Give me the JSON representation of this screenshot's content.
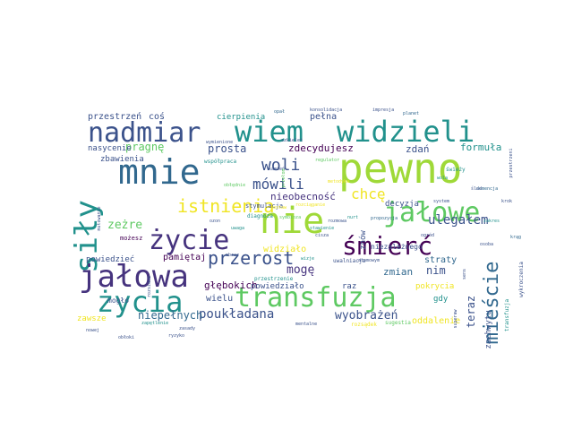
{
  "palette": {
    "yellow": "#f0e524",
    "lime": "#9fd938",
    "green": "#5ec962",
    "teal": "#21918c",
    "slate": "#31688e",
    "indigo": "#3b528b",
    "purple": "#46337e",
    "dark": "#440154"
  },
  "words": [
    {
      "text": "pewno",
      "color": "lime"
    },
    {
      "text": "mnie",
      "color": "slate"
    },
    {
      "text": "nie",
      "color": "lime"
    },
    {
      "text": "wiem",
      "color": "teal"
    },
    {
      "text": "widzieli",
      "color": "teal"
    },
    {
      "text": "nadmiar",
      "color": "indigo"
    },
    {
      "text": "jałowe",
      "color": "green"
    },
    {
      "text": "siły",
      "color": "teal"
    },
    {
      "text": "życie",
      "color": "purple"
    },
    {
      "text": "jałowa",
      "color": "purple"
    },
    {
      "text": "życia",
      "color": "teal"
    },
    {
      "text": "transfuzja",
      "color": "green"
    },
    {
      "text": "śmierć",
      "color": "dark"
    },
    {
      "text": "istnienia",
      "color": "yellow"
    },
    {
      "text": "przerost",
      "color": "indigo"
    },
    {
      "text": "mieście",
      "color": "slate"
    },
    {
      "text": "woli",
      "color": "indigo"
    },
    {
      "text": "mówili",
      "color": "indigo"
    },
    {
      "text": "ulegałem",
      "color": "indigo"
    },
    {
      "text": "pragnę",
      "color": "green"
    },
    {
      "text": "prosta",
      "color": "indigo"
    },
    {
      "text": "zdecydujesz",
      "color": "dark"
    },
    {
      "text": "zdań",
      "color": "indigo"
    },
    {
      "text": "formuła",
      "color": "teal"
    },
    {
      "text": "chcę",
      "color": "yellow"
    },
    {
      "text": "nieobecność",
      "color": "purple"
    },
    {
      "text": "zeżre",
      "color": "green"
    },
    {
      "text": "pamiętaj",
      "color": "dark"
    },
    {
      "text": "możesz",
      "color": "dark"
    },
    {
      "text": "powiedzieć",
      "color": "indigo"
    },
    {
      "text": "głębokich",
      "color": "dark"
    },
    {
      "text": "mogę",
      "color": "purple"
    },
    {
      "text": "zmian",
      "color": "slate"
    },
    {
      "text": "nim",
      "color": "indigo"
    },
    {
      "text": "teraz",
      "color": "indigo"
    },
    {
      "text": "widziało",
      "color": "yellow"
    },
    {
      "text": "straty",
      "color": "slate"
    },
    {
      "text": "poukładana",
      "color": "indigo"
    },
    {
      "text": "wyobrażeń",
      "color": "indigo"
    },
    {
      "text": "niepełnych",
      "color": "slate"
    },
    {
      "text": "wielu",
      "color": "indigo"
    },
    {
      "text": "oddalenie",
      "color": "yellow"
    },
    {
      "text": "przestrzeń",
      "color": "indigo"
    },
    {
      "text": "coś",
      "color": "indigo"
    },
    {
      "text": "cierpienia",
      "color": "teal"
    },
    {
      "text": "pełna",
      "color": "indigo"
    },
    {
      "text": "nasycenie",
      "color": "indigo"
    },
    {
      "text": "zbawienia",
      "color": "indigo"
    },
    {
      "text": "współpraca",
      "color": "teal"
    },
    {
      "text": "decyzja",
      "color": "indigo"
    },
    {
      "text": "powiedziało",
      "color": "indigo"
    },
    {
      "text": "mogło",
      "color": "indigo"
    },
    {
      "text": "raz",
      "color": "indigo"
    },
    {
      "text": "pokrycia",
      "color": "yellow"
    },
    {
      "text": "gdy",
      "color": "teal"
    },
    {
      "text": "niezależnego",
      "color": "indigo"
    },
    {
      "text": "znów",
      "color": "indigo"
    },
    {
      "text": "zachwytu",
      "color": "indigo"
    },
    {
      "text": "zawsze",
      "color": "yellow"
    },
    {
      "text": "stymulacja",
      "color": "indigo"
    },
    {
      "text": "diagnoza",
      "color": "teal"
    },
    {
      "text": "uwalniacja",
      "color": "indigo"
    },
    {
      "text": "przestrzenie",
      "color": "teal"
    },
    {
      "text": "świeży",
      "color": "teal"
    },
    {
      "text": "wykroczenia",
      "color": "indigo"
    },
    {
      "text": "transfuzja",
      "color": "teal"
    },
    {
      "text": "opał",
      "color": "slate"
    },
    {
      "text": "konsolidacja",
      "color": "indigo"
    },
    {
      "text": "impresja",
      "color": "indigo"
    },
    {
      "text": "planet",
      "color": "slate"
    },
    {
      "text": "demencja",
      "color": "slate"
    },
    {
      "text": "mutowanie",
      "color": "indigo"
    },
    {
      "text": "regulator",
      "color": "green"
    },
    {
      "text": "wymienione",
      "color": "indigo"
    },
    {
      "text": "metodyka",
      "color": "yellow"
    },
    {
      "text": "zapętlenie",
      "color": "teal"
    },
    {
      "text": "symbioza",
      "color": "green"
    },
    {
      "text": "rozciąganie",
      "color": "yellow"
    },
    {
      "text": "obłędnie",
      "color": "green"
    },
    {
      "text": "wizje",
      "color": "teal"
    },
    {
      "text": "propozycja",
      "color": "slate"
    },
    {
      "text": "atomowym",
      "color": "indigo"
    },
    {
      "text": "sugestia",
      "color": "green"
    },
    {
      "text": "mentalne",
      "color": "indigo"
    },
    {
      "text": "rozsądek",
      "color": "yellow"
    },
    {
      "text": "nowej",
      "color": "indigo"
    },
    {
      "text": "zasady",
      "color": "indigo"
    },
    {
      "text": "rozsiane",
      "color": "indigo"
    },
    {
      "text": "stawienie",
      "color": "teal"
    },
    {
      "text": "rozmowa",
      "color": "indigo"
    },
    {
      "text": "cisza",
      "color": "indigo"
    },
    {
      "text": "nurt",
      "color": "teal"
    },
    {
      "text": "wola",
      "color": "teal"
    },
    {
      "text": "kamień",
      "color": "indigo"
    },
    {
      "text": "ogród",
      "color": "indigo"
    },
    {
      "text": "szkielet",
      "color": "indigo"
    },
    {
      "text": "przełom",
      "color": "green"
    },
    {
      "text": "zestaw",
      "color": "yellow"
    },
    {
      "text": "obraz",
      "color": "indigo"
    },
    {
      "text": "system",
      "color": "indigo"
    },
    {
      "text": "zakres",
      "color": "teal"
    },
    {
      "text": "krąg",
      "color": "slate"
    },
    {
      "text": "ślad",
      "color": "indigo"
    },
    {
      "text": "osoba",
      "color": "indigo"
    },
    {
      "text": "uwaga",
      "color": "teal"
    },
    {
      "text": "krok",
      "color": "indigo"
    },
    {
      "text": "obłoki",
      "color": "indigo"
    },
    {
      "text": "sens",
      "color": "indigo"
    },
    {
      "text": "ozon",
      "color": "indigo"
    },
    {
      "text": "ryzyko",
      "color": "indigo"
    },
    {
      "text": "superaw",
      "color": "indigo"
    },
    {
      "text": "przestrzeni",
      "color": "indigo"
    },
    {
      "text": "natchnienie",
      "color": "slate"
    }
  ]
}
